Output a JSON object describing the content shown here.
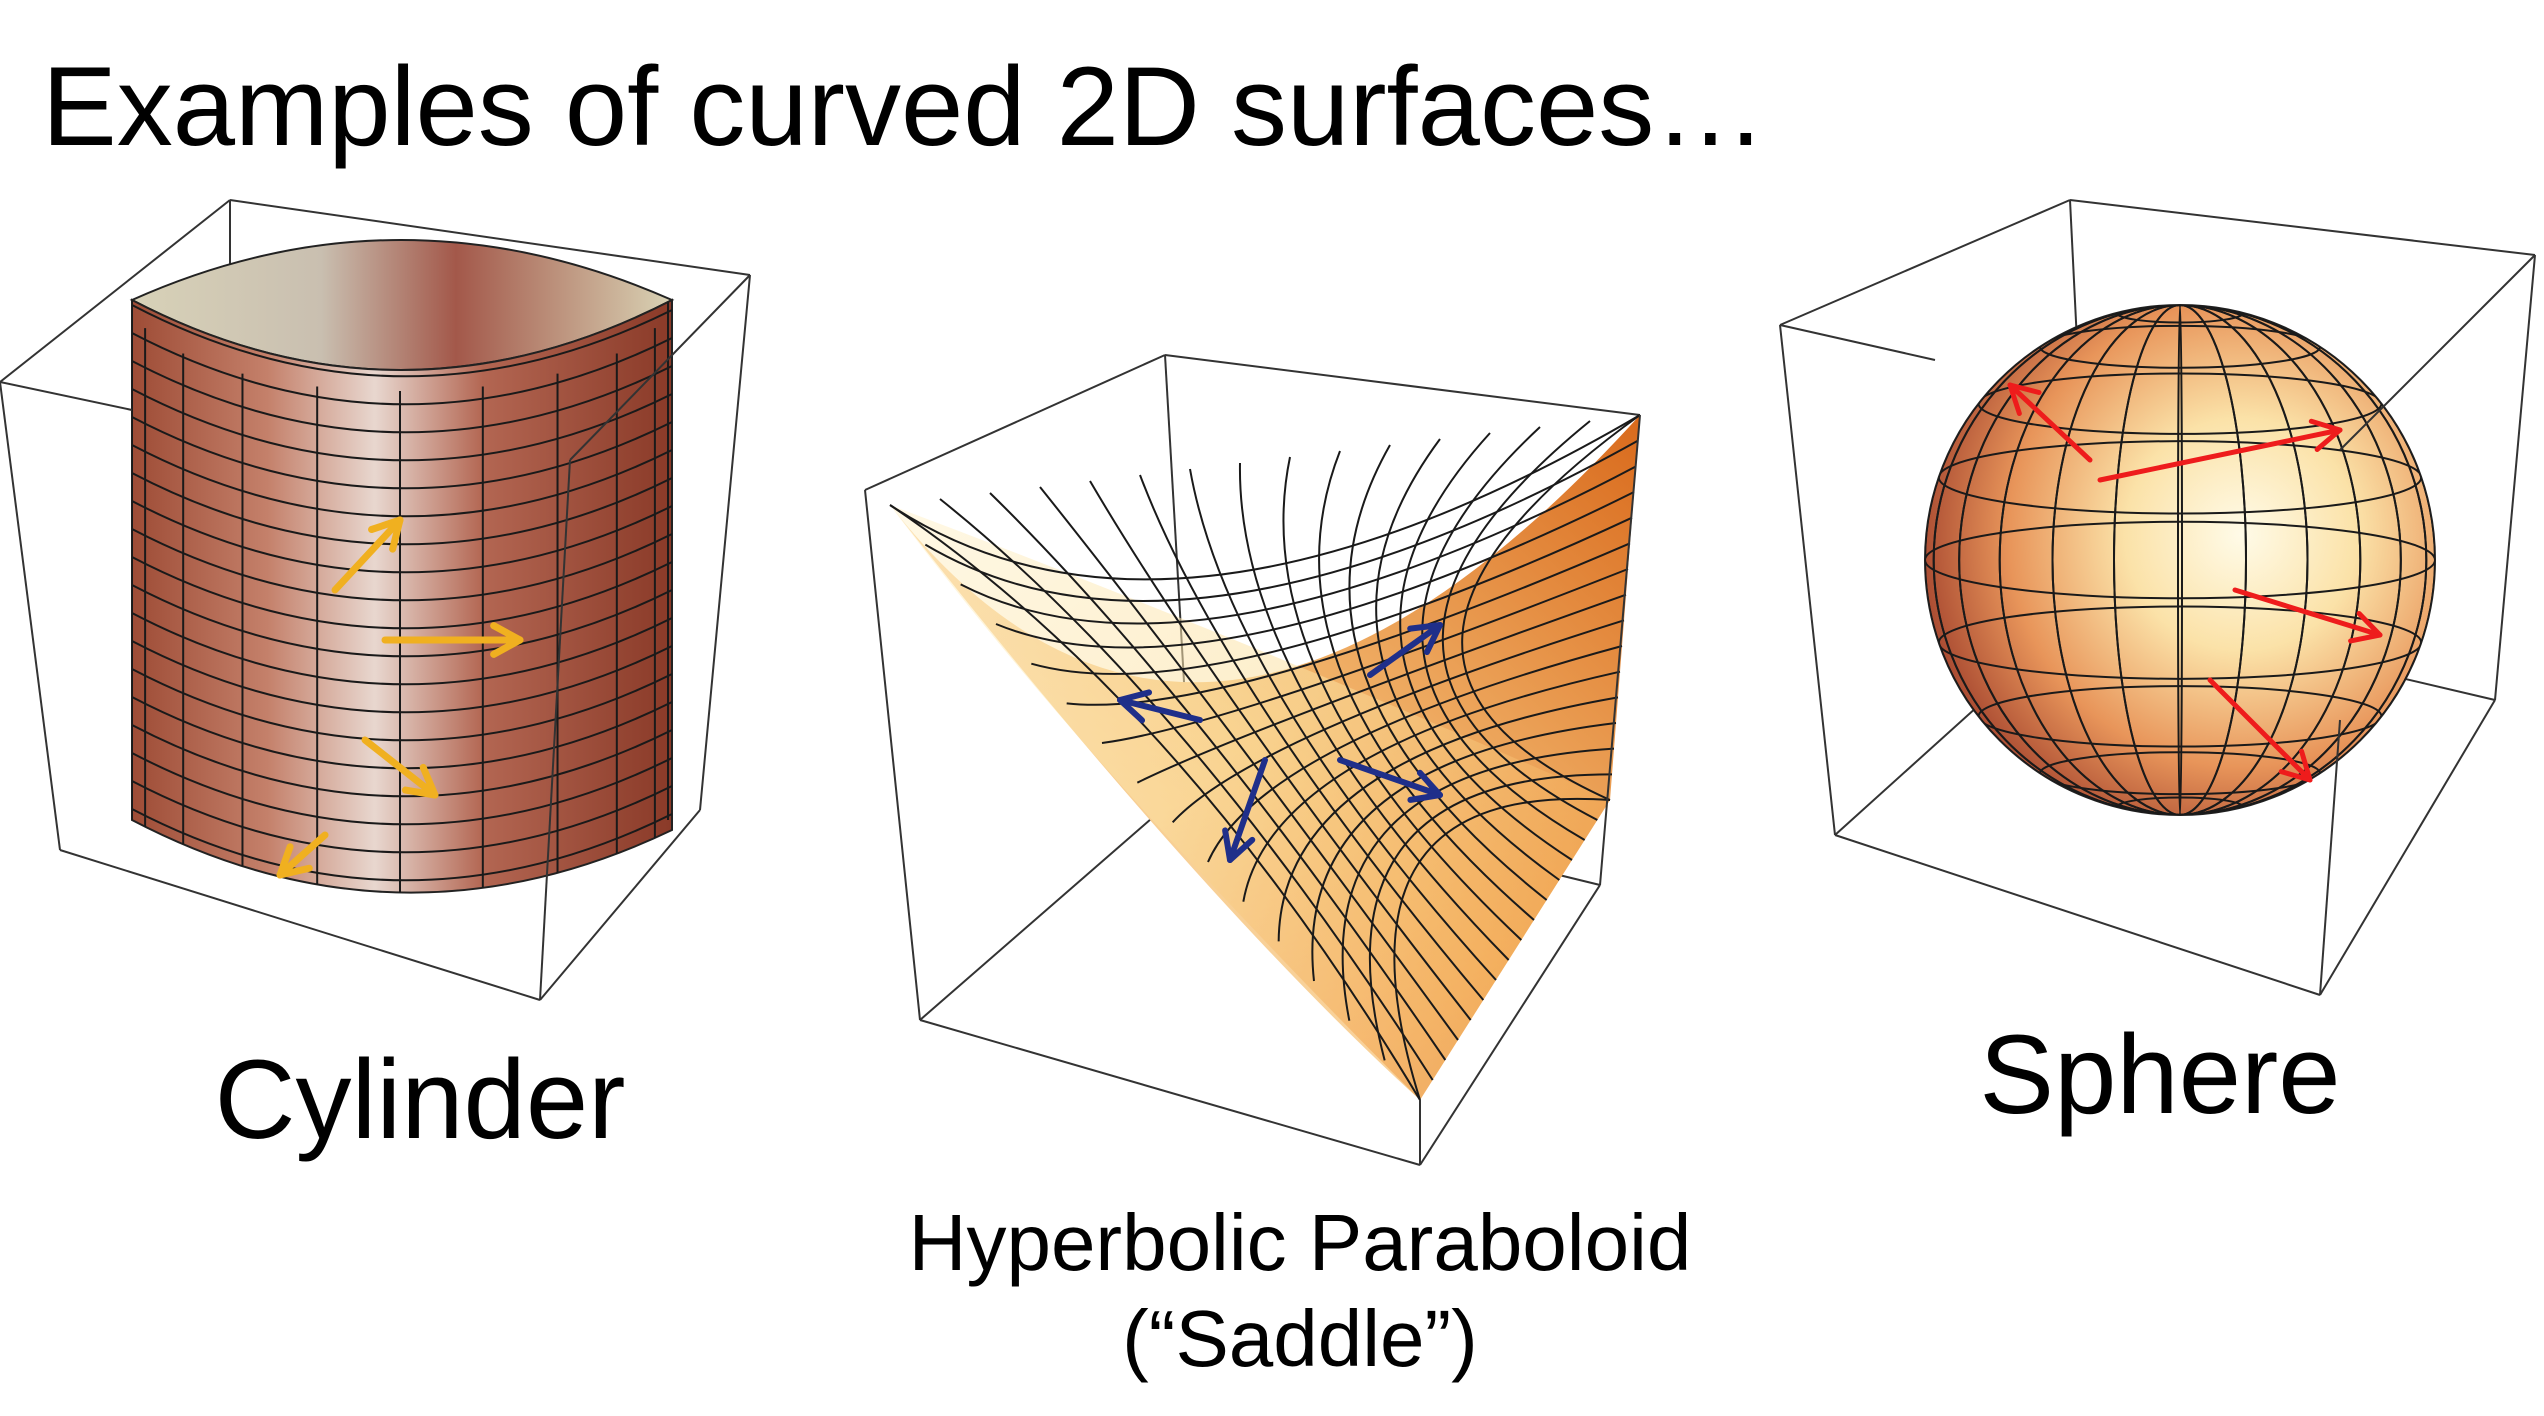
{
  "title": "Examples of curved 2D surfaces…",
  "figures": {
    "cylinder": {
      "label": "Cylinder",
      "arrow_color": "#f0b020",
      "surface_color": "#a8553d"
    },
    "saddle": {
      "label_line1": "Hyperbolic Paraboloid",
      "label_line2": "(“Saddle”)",
      "arrow_color": "#1f2f8a",
      "surface_color": "#f2a140"
    },
    "sphere": {
      "label": "Sphere",
      "arrow_color": "#ee1c1c",
      "surface_color": "#f0a35a"
    }
  },
  "icons": [
    "cylinder-surface-icon",
    "saddle-surface-icon",
    "sphere-surface-icon"
  ]
}
